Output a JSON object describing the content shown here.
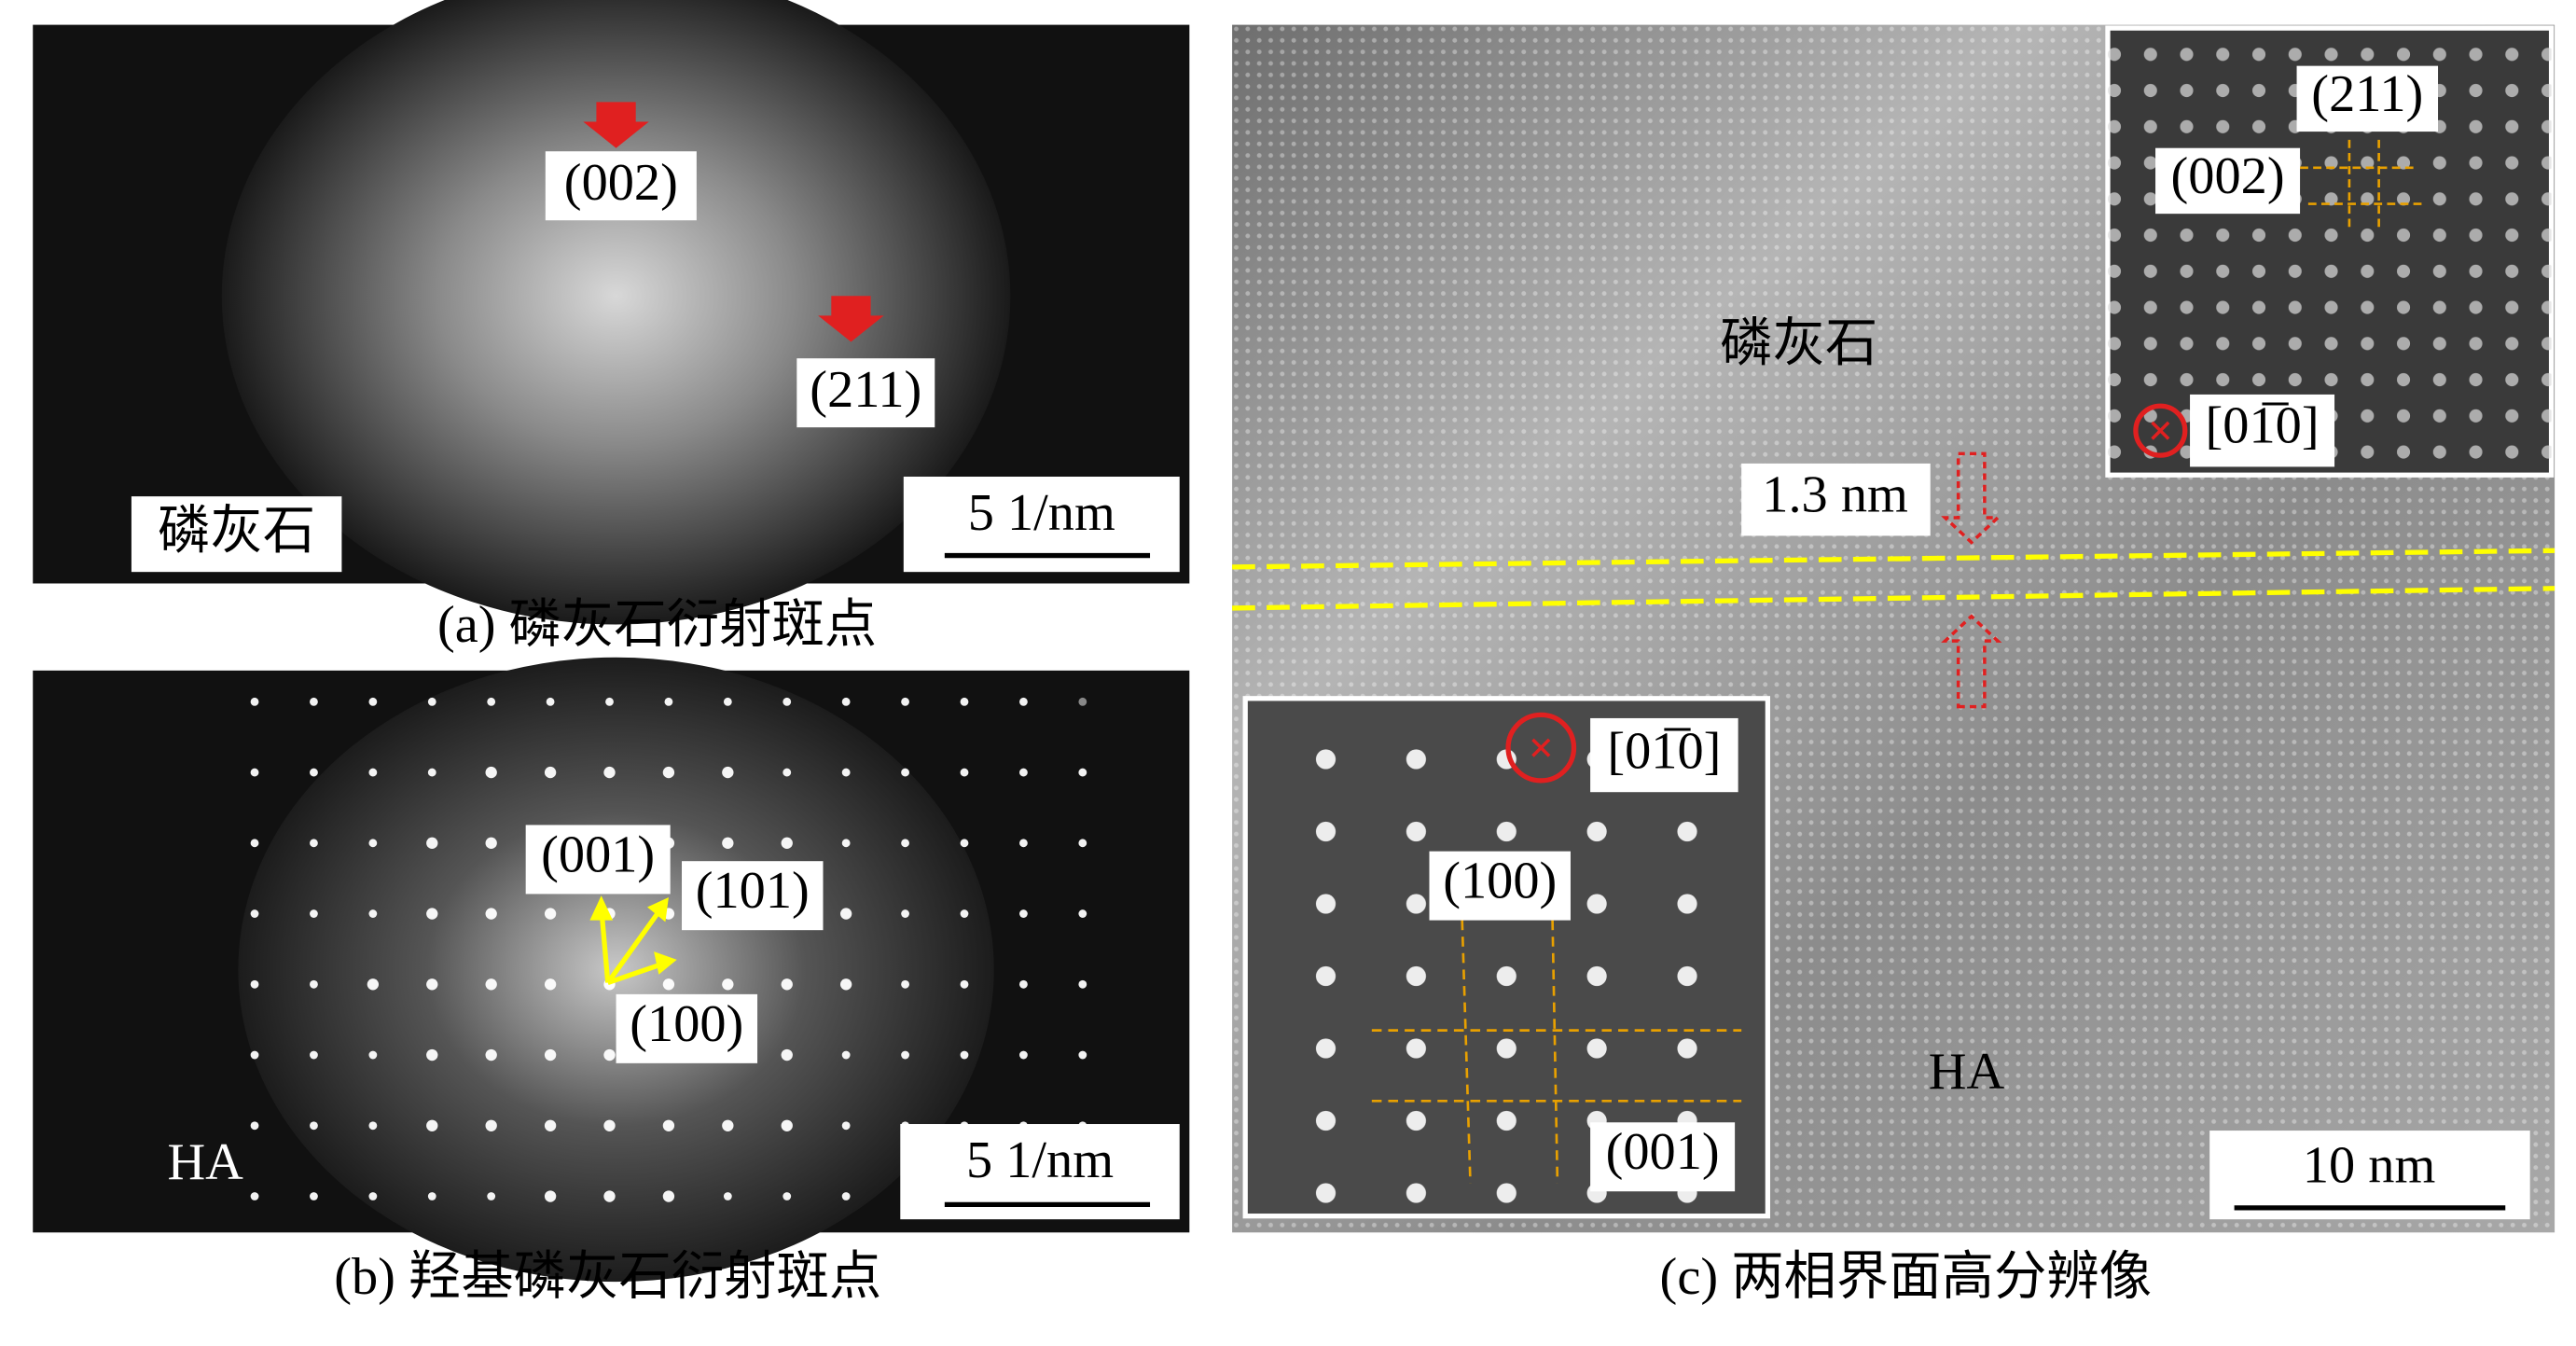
{
  "panel_a": {
    "caption": "(a) 磷灰石衍射斑点",
    "labels": [
      "(002)",
      "(211)"
    ],
    "phase": "磷灰石",
    "scale_bar": "5 1/nm"
  },
  "panel_b": {
    "caption": "(b) 羟基磷灰石衍射斑点",
    "labels": [
      "(001)",
      "(101)",
      "(100)"
    ],
    "phase": "HA",
    "scale_bar": "5 1/nm"
  },
  "panel_c": {
    "caption": "(c) 两相界面高分辨像",
    "upper_phase": "磷灰石",
    "interface_width": "1.3 nm",
    "lower_phase": "HA",
    "scale_bar": "10 nm",
    "inset_top": {
      "labels": [
        "(211)",
        "(002)"
      ],
      "zone_axis": "[01̅0]"
    },
    "inset_bottom": {
      "zone_axis": "[01̅0]",
      "labels": [
        "(100)",
        "(001)"
      ]
    }
  }
}
